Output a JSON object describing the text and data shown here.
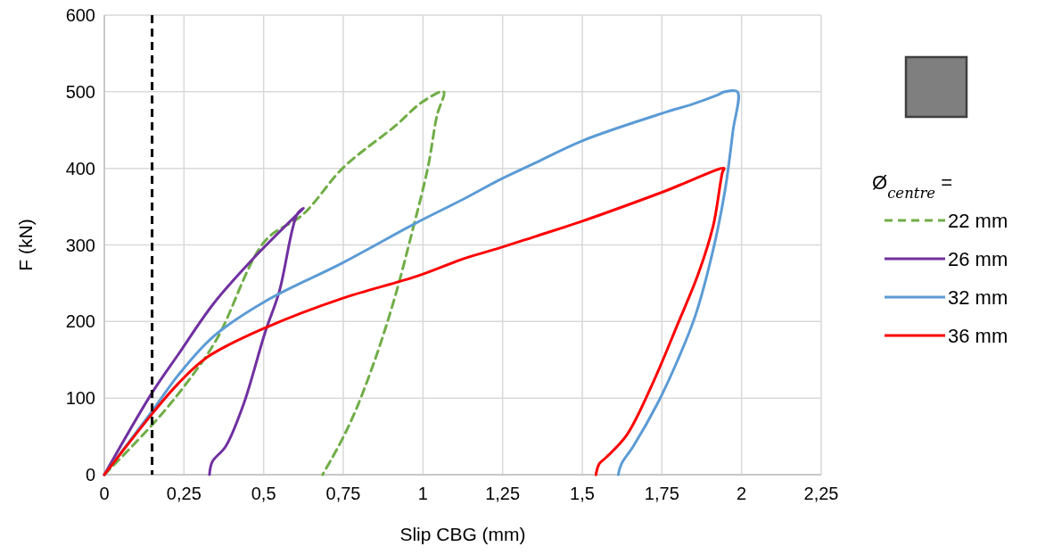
{
  "chart_data": {
    "type": "line",
    "xlabel": "Slip CBG (mm)",
    "ylabel": "F (kN)",
    "legend_title": "Ø$_{centre}$ =",
    "xlim": [
      0,
      2.25
    ],
    "xticks": [
      0,
      {
        "value": 0.25,
        "label": "0,25"
      },
      {
        "value": 0.5,
        "label": "0,5"
      },
      {
        "value": 0.75,
        "label": "0,75"
      },
      1,
      {
        "value": 1.25,
        "label": "1,25"
      },
      {
        "value": 1.5,
        "label": "1,5"
      },
      {
        "value": 1.75,
        "label": "1,75"
      },
      2,
      {
        "value": 2.25,
        "label": "2,25"
      }
    ],
    "ylim": [
      0,
      600
    ],
    "yticks": [
      0,
      100,
      200,
      300,
      400,
      500,
      600
    ],
    "grid": true,
    "legend": "right",
    "ref_lines": [
      {
        "axis": "x",
        "value": 0.15,
        "color": "#000000",
        "line_style": "dashed"
      }
    ],
    "series": [
      {
        "name": "22 mm",
        "color": "#70ad47",
        "line_style": "dashed",
        "x": [
          0,
          0.15,
          0.25,
          0.353,
          0.504,
          0.624,
          0.75,
          0.912,
          0.996,
          1.065,
          1.044,
          1.016,
          0.968,
          0.912,
          0.856,
          0.792,
          0.745,
          0.685
        ],
        "values": [
          0,
          65,
          115,
          177,
          305,
          340,
          401,
          455,
          486,
          500,
          469,
          402,
          320,
          232,
          158,
          87,
          45,
          0
        ]
      },
      {
        "name": "26 mm",
        "color": "#7030a0",
        "line_style": "solid",
        "x": [
          0,
          0.15,
          0.232,
          0.344,
          0.476,
          0.625,
          0.605,
          0.549,
          0.504,
          0.437,
          0.381,
          0.339,
          0.33
        ],
        "values": [
          0,
          107,
          157,
          224,
          286,
          348,
          340,
          239,
          185,
          92,
          37,
          17,
          0
        ]
      },
      {
        "name": "32 mm",
        "color": "#5b9bd5",
        "line_style": "solid",
        "x": [
          0,
          0.157,
          0.232,
          0.344,
          0.512,
          0.745,
          0.98,
          1.128,
          1.24,
          1.352,
          1.5,
          1.752,
          1.847,
          1.92,
          1.948,
          1.987,
          1.973,
          1.948,
          1.911,
          1.856,
          1.8,
          1.735,
          1.66,
          1.623,
          1.613
        ],
        "values": [
          0,
          87,
          130,
          181,
          228,
          276,
          329,
          360,
          385,
          407,
          436,
          472,
          484,
          495,
          500,
          500,
          449,
          371,
          294,
          209,
          150,
          92,
          37,
          14,
          0
        ]
      },
      {
        "name": "36 mm",
        "color": "#ff0000",
        "line_style": "solid",
        "x": [
          0,
          0.151,
          0.232,
          0.325,
          0.512,
          0.745,
          0.98,
          1.128,
          1.24,
          1.352,
          1.5,
          1.752,
          1.945,
          1.94,
          1.911,
          1.864,
          1.8,
          1.724,
          1.64,
          1.576,
          1.553,
          1.543
        ],
        "values": [
          0,
          80,
          119,
          154,
          193,
          230,
          259,
          282,
          296,
          311,
          331,
          369,
          400,
          395,
          325,
          262,
          197,
          122,
          52,
          23,
          14,
          0
        ]
      }
    ]
  }
}
